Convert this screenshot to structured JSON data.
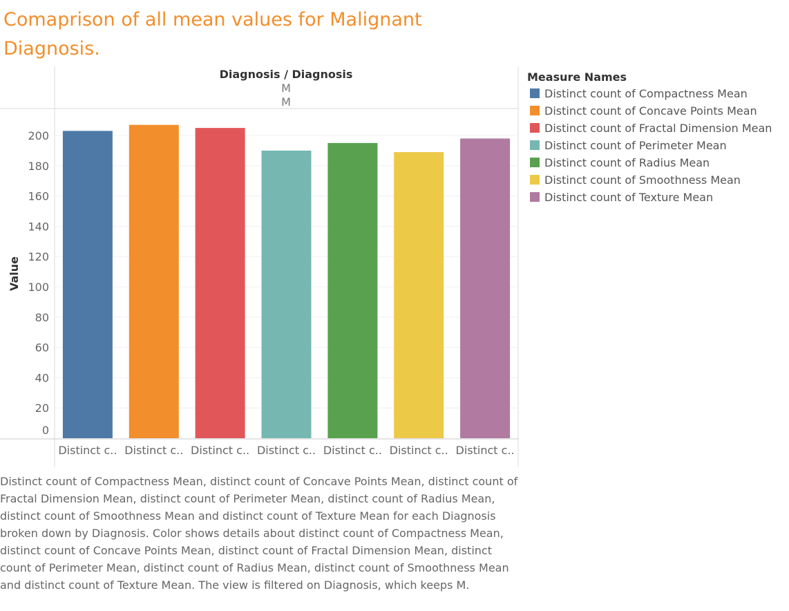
{
  "title": "Comaprison of all mean values for Malignant Diagnosis.",
  "chart_data": {
    "type": "bar",
    "column_header": {
      "label": "Diagnosis / Diagnosis",
      "values": [
        "M",
        "M"
      ]
    },
    "categories": [
      "Distinct count of Compactness Mean",
      "Distinct count of Concave Points Mean",
      "Distinct count of Fractal Dimension Mean",
      "Distinct count of Perimeter Mean",
      "Distinct count of Radius Mean",
      "Distinct count of Smoothness Mean",
      "Distinct count of Texture Mean"
    ],
    "category_tick_labels": [
      "Distinct c..",
      "Distinct c..",
      "Distinct c..",
      "Distinct c..",
      "Distinct c..",
      "Distinct c..",
      "Distinct c.."
    ],
    "values": [
      203,
      207,
      205,
      190,
      195,
      189,
      198
    ],
    "colors": [
      "#4e79a7",
      "#f28e2b",
      "#e15759",
      "#76b7b2",
      "#59a14f",
      "#edc948",
      "#b07aa1"
    ],
    "ylabel": "Value",
    "yticks": [
      0,
      20,
      40,
      60,
      80,
      100,
      120,
      140,
      160,
      180,
      200
    ],
    "ylim": [
      0,
      210
    ],
    "grid": true,
    "legend": {
      "title": "Measure Names",
      "placement": "right"
    }
  },
  "caption": "Distinct count of Compactness Mean, distinct count of Concave Points Mean, distinct count of Fractal Dimension Mean, distinct count of Perimeter Mean, distinct count of Radius Mean, distinct count of Smoothness Mean and distinct count of Texture Mean for each Diagnosis broken down by Diagnosis.  Color shows details about distinct count of Compactness Mean, distinct count of Concave Points Mean, distinct count of Fractal Dimension Mean, distinct count of Perimeter Mean, distinct count of Radius Mean, distinct count of Smoothness Mean and distinct count of Texture Mean. The view is filtered on Diagnosis, which keeps M."
}
